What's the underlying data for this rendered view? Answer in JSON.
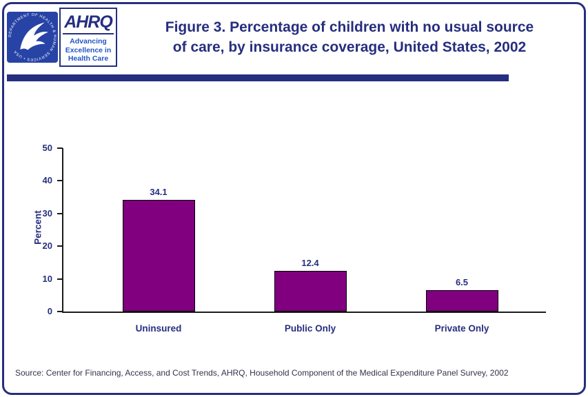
{
  "colors": {
    "navy": "#262E7F",
    "bar_purple": "#800080",
    "hhs_blue": "#2843A6",
    "tagline_blue": "#2456C4",
    "source_text": "#33334A"
  },
  "logos": {
    "hhs": {
      "ring_text": "DEPARTMENT OF HEALTH & HUMAN SERVICES • USA"
    },
    "ahrq": {
      "acronym": "AHRQ",
      "tagline_line1": "Advancing",
      "tagline_line2": "Excellence in",
      "tagline_line3": "Health Care"
    }
  },
  "header": {
    "title_line1": "Figure 3. Percentage of children with no usual source",
    "title_line2": "of care, by insurance coverage, United States, 2002"
  },
  "chart_data": {
    "type": "bar",
    "title": "Figure 3. Percentage of children with no usual source of care, by insurance coverage, United States, 2002",
    "categories": [
      "Uninsured",
      "Public Only",
      "Private Only"
    ],
    "values": [
      34.1,
      12.4,
      6.5
    ],
    "xlabel": "",
    "ylabel": "Percent",
    "ylim": [
      0,
      50
    ],
    "yticks": [
      0,
      10,
      20,
      30,
      40,
      50
    ],
    "grid": false,
    "legend_position": "none",
    "bar_color": "#800080",
    "bar_border_color": "#000000"
  },
  "footer": {
    "source": "Source: Center for Financing, Access, and Cost Trends, AHRQ, Household Component of the Medical Expenditure Panel Survey, 2002"
  }
}
